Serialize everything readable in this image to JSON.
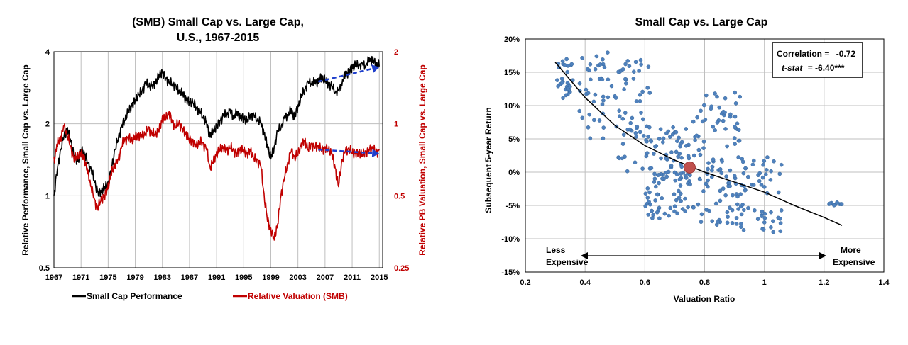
{
  "chart_data": [
    {
      "type": "line",
      "title": "(SMB) Small Cap vs. Large Cap, U.S., 1967-2015",
      "title_lines": [
        "(SMB) Small Cap vs. Large Cap,",
        "U.S., 1967-2015"
      ],
      "ylabel": "Relative Performance, Small Cap vs. Large Cap",
      "y2label": "Relative PB Valuation, Small Cap vs. Large Cap",
      "xlim": [
        1967,
        2015.5
      ],
      "ylim": [
        0.5,
        4
      ],
      "y2lim": [
        0.25,
        2
      ],
      "yscale": "log",
      "grid": true,
      "legend_position": "bottom",
      "x_ticks": [
        "1967",
        "1971",
        "1975",
        "1979",
        "1983",
        "1987",
        "1991",
        "1995",
        "1999",
        "2003",
        "2007",
        "2011",
        "2015"
      ],
      "y_ticks": [
        "4",
        "2",
        "1",
        "0.5"
      ],
      "y2_ticks": [
        "2",
        "1",
        "0.5",
        "0.25"
      ],
      "series": [
        {
          "name": "Small Cap Performance",
          "axis": "left",
          "color": "#000000",
          "x": [
            1967,
            1967.5,
            1968,
            1968.5,
            1969,
            1969.5,
            1970,
            1970.5,
            1971,
            1971.5,
            1972,
            1972.5,
            1973,
            1973.5,
            1974,
            1974.5,
            1975,
            1975.5,
            1976,
            1976.5,
            1977,
            1977.5,
            1978,
            1978.5,
            1979,
            1979.5,
            1980,
            1980.5,
            1981,
            1981.5,
            1982,
            1982.5,
            1983,
            1983.5,
            1984,
            1984.5,
            1985,
            1985.5,
            1986,
            1986.5,
            1987,
            1987.5,
            1988,
            1988.5,
            1989,
            1989.5,
            1990,
            1990.5,
            1991,
            1991.5,
            1992,
            1992.5,
            1993,
            1993.5,
            1994,
            1994.5,
            1995,
            1995.5,
            1996,
            1996.5,
            1997,
            1997.5,
            1998,
            1998.5,
            1999,
            1999.5,
            2000,
            2000.5,
            2001,
            2001.5,
            2002,
            2002.5,
            2003,
            2003.5,
            2004,
            2004.5,
            2005,
            2005.5,
            2006,
            2006.5,
            2007,
            2007.5,
            2008,
            2008.5,
            2009,
            2009.5,
            2010,
            2010.5,
            2011,
            2011.5,
            2012,
            2012.5,
            2013,
            2013.5,
            2014,
            2014.5,
            2015
          ],
          "values": [
            1.0,
            1.3,
            1.55,
            1.8,
            1.9,
            1.7,
            1.45,
            1.4,
            1.55,
            1.5,
            1.38,
            1.28,
            1.15,
            1.02,
            1.05,
            1.08,
            1.12,
            1.3,
            1.55,
            1.75,
            1.95,
            2.1,
            2.25,
            2.4,
            2.5,
            2.65,
            2.75,
            2.95,
            2.9,
            2.85,
            3.0,
            3.15,
            3.3,
            3.1,
            2.95,
            2.95,
            2.85,
            2.75,
            2.65,
            2.55,
            2.45,
            2.45,
            2.35,
            2.25,
            2.15,
            2.0,
            1.8,
            1.85,
            1.95,
            2.05,
            2.15,
            2.2,
            2.25,
            2.15,
            2.2,
            2.15,
            2.1,
            2.05,
            2.2,
            2.15,
            2.1,
            2.0,
            1.85,
            1.6,
            1.45,
            1.6,
            1.85,
            1.95,
            2.1,
            2.2,
            2.25,
            2.15,
            2.35,
            2.6,
            2.8,
            2.95,
            3.0,
            2.95,
            3.05,
            3.1,
            3.05,
            2.95,
            2.85,
            2.75,
            2.7,
            3.0,
            3.2,
            3.3,
            3.45,
            3.5,
            3.55,
            3.5,
            3.55,
            3.65,
            3.75,
            3.5,
            3.55
          ]
        },
        {
          "name": "Relative Valuation (SMB)",
          "axis": "right",
          "color": "#c00000",
          "x": [
            1967,
            1967.5,
            1968,
            1968.5,
            1969,
            1969.5,
            1970,
            1970.5,
            1971,
            1971.5,
            1972,
            1972.5,
            1973,
            1973.5,
            1974,
            1974.5,
            1975,
            1975.5,
            1976,
            1976.5,
            1977,
            1977.5,
            1978,
            1978.5,
            1979,
            1979.5,
            1980,
            1980.5,
            1981,
            1981.5,
            1982,
            1982.5,
            1983,
            1983.5,
            1984,
            1984.5,
            1985,
            1985.5,
            1986,
            1986.5,
            1987,
            1987.5,
            1988,
            1988.5,
            1989,
            1989.5,
            1990,
            1990.5,
            1991,
            1991.5,
            1992,
            1992.5,
            1993,
            1993.5,
            1994,
            1994.5,
            1995,
            1995.5,
            1996,
            1996.5,
            1997,
            1997.5,
            1998,
            1998.5,
            1999,
            1999.5,
            2000,
            2000.5,
            2001,
            2001.5,
            2002,
            2002.5,
            2003,
            2003.5,
            2004,
            2004.5,
            2005,
            2005.5,
            2006,
            2006.5,
            2007,
            2007.5,
            2008,
            2008.5,
            2009,
            2009.5,
            2010,
            2010.5,
            2011,
            2011.5,
            2012,
            2012.5,
            2013,
            2013.5,
            2014,
            2014.5,
            2015
          ],
          "values": [
            0.7,
            0.82,
            0.88,
            0.97,
            0.9,
            0.78,
            0.72,
            0.73,
            0.75,
            0.72,
            0.62,
            0.55,
            0.47,
            0.45,
            0.48,
            0.5,
            0.55,
            0.62,
            0.68,
            0.7,
            0.82,
            0.85,
            0.88,
            0.85,
            0.88,
            0.9,
            0.88,
            0.92,
            0.95,
            0.92,
            0.9,
            0.95,
            1.05,
            1.05,
            1.12,
            1.0,
            0.98,
            1.0,
            0.95,
            0.9,
            0.85,
            0.85,
            0.8,
            0.85,
            0.82,
            0.8,
            0.65,
            0.7,
            0.75,
            0.78,
            0.8,
            0.77,
            0.8,
            0.77,
            0.75,
            0.78,
            0.77,
            0.75,
            0.77,
            0.72,
            0.7,
            0.68,
            0.5,
            0.4,
            0.36,
            0.33,
            0.38,
            0.5,
            0.6,
            0.68,
            0.78,
            0.72,
            0.75,
            0.82,
            0.85,
            0.78,
            0.82,
            0.8,
            0.8,
            0.78,
            0.79,
            0.78,
            0.75,
            0.65,
            0.55,
            0.7,
            0.78,
            0.78,
            0.76,
            0.75,
            0.76,
            0.74,
            0.76,
            0.78,
            0.79,
            0.76,
            0.77
          ]
        }
      ],
      "annotations": [
        {
          "type": "dashed-arrow",
          "color": "#1f3fcc",
          "axis": "left",
          "from": [
            2006,
            3.0
          ],
          "to": [
            2015,
            3.45
          ]
        },
        {
          "type": "dashed-arrow",
          "color": "#1f3fcc",
          "axis": "right",
          "from": [
            2006,
            0.78
          ],
          "to": [
            2015,
            0.75
          ]
        }
      ]
    },
    {
      "type": "scatter",
      "title": "Small Cap vs. Large Cap",
      "xlabel": "Valuation Ratio",
      "ylabel": "Subsequent 5-year Return",
      "xlim": [
        0.2,
        1.4
      ],
      "ylim": [
        -0.15,
        0.2
      ],
      "grid": true,
      "x_ticks": [
        "0.2",
        "0.4",
        "0.6",
        "0.8",
        "1",
        "1.2",
        "1.4"
      ],
      "y_ticks": [
        "20%",
        "15%",
        "10%",
        "5%",
        "0%",
        "-5%",
        "-10%",
        "-15%"
      ],
      "stats_box": {
        "correlation_label": "Correlation =",
        "correlation_value": "-0.72",
        "tstat_label": "t-stat",
        "tstat_value": "= -6.40***"
      },
      "axis_notes": {
        "left_line1": "Less",
        "left_line2": "Expensive",
        "right_line1": "More",
        "right_line2": "Expensive"
      },
      "point_color": "#4f81bd",
      "highlight_point": {
        "x": 0.75,
        "y": 0.007,
        "color": "#c0504d"
      },
      "trend_line": {
        "type": "curve",
        "points": [
          [
            0.3,
            0.165
          ],
          [
            0.4,
            0.112
          ],
          [
            0.5,
            0.07
          ],
          [
            0.6,
            0.04
          ],
          [
            0.7,
            0.018
          ],
          [
            0.8,
            0.0
          ],
          [
            0.9,
            -0.015
          ],
          [
            1.0,
            -0.03
          ],
          [
            1.1,
            -0.05
          ],
          [
            1.2,
            -0.068
          ],
          [
            1.26,
            -0.08
          ]
        ]
      },
      "clusters": [
        {
          "x": [
            0.3,
            0.36
          ],
          "y": [
            0.11,
            0.17
          ],
          "count": 30
        },
        {
          "x": [
            0.38,
            0.5
          ],
          "y": [
            0.05,
            0.18
          ],
          "count": 40
        },
        {
          "x": [
            0.5,
            0.62
          ],
          "y": [
            0.0,
            0.17
          ],
          "count": 55
        },
        {
          "x": [
            0.6,
            0.75
          ],
          "y": [
            -0.07,
            0.07
          ],
          "count": 110
        },
        {
          "x": [
            0.75,
            0.92
          ],
          "y": [
            -0.08,
            0.12
          ],
          "count": 110
        },
        {
          "x": [
            0.92,
            1.07
          ],
          "y": [
            -0.09,
            0.03
          ],
          "count": 60
        },
        {
          "x": [
            1.21,
            1.26
          ],
          "y": [
            -0.05,
            -0.045
          ],
          "count": 10
        }
      ]
    }
  ]
}
